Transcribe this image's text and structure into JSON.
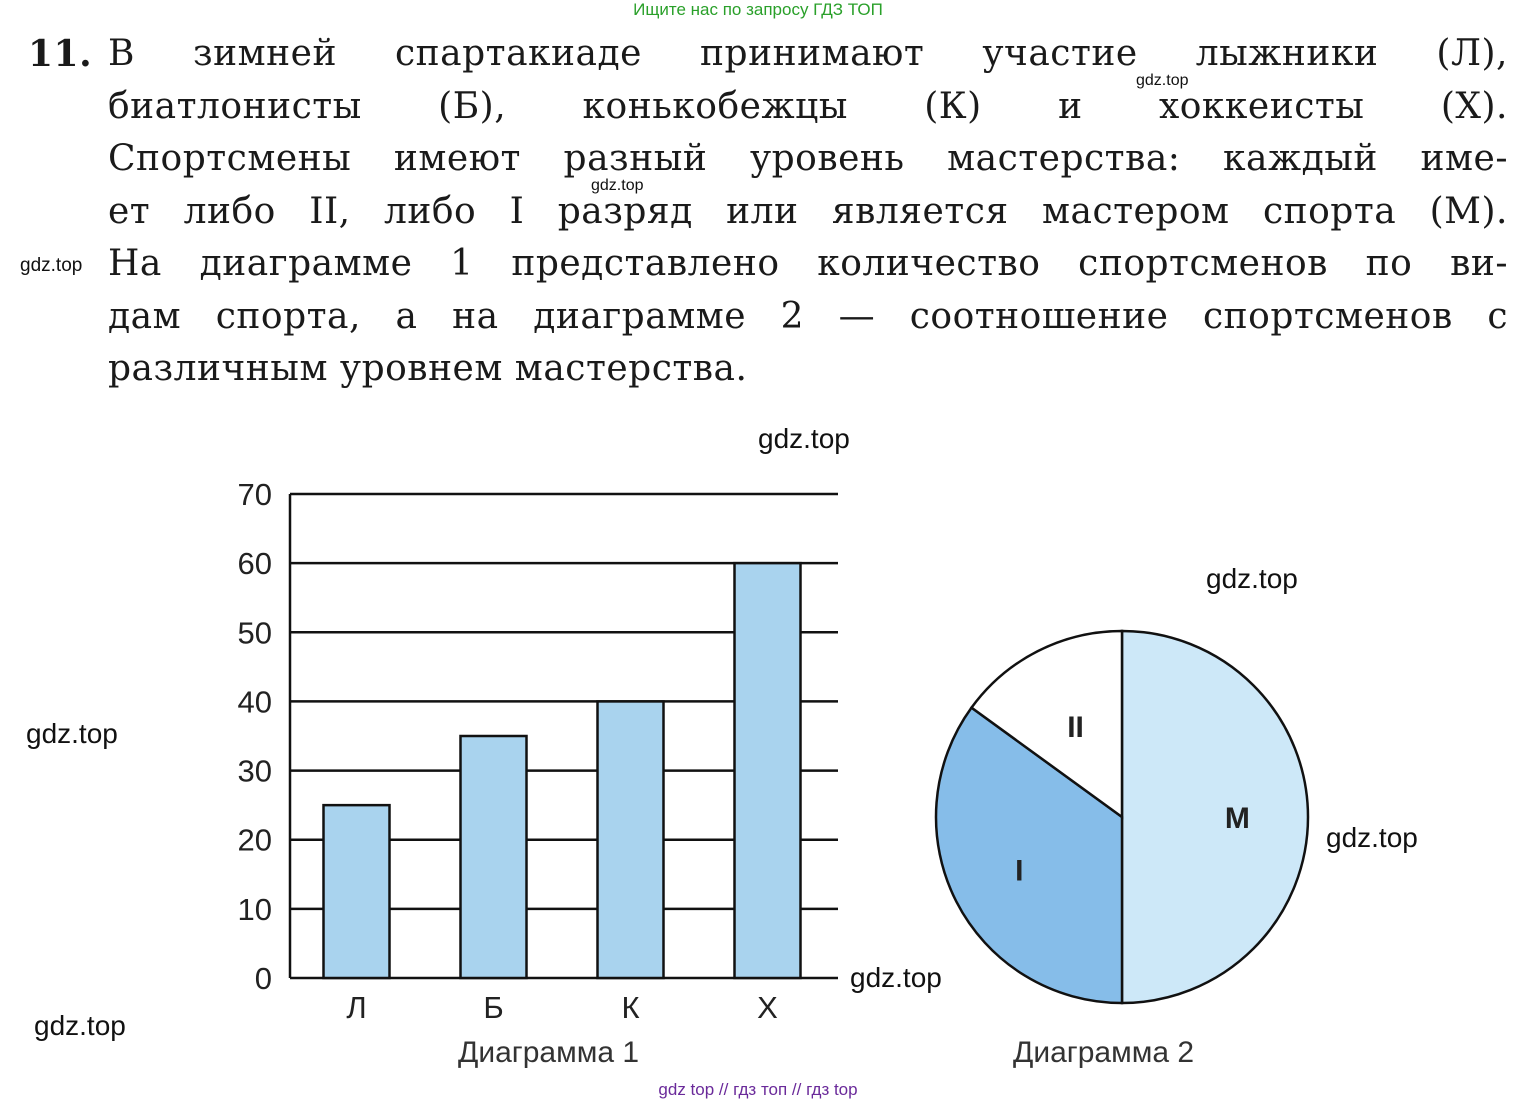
{
  "top_link": "Ищите нас по запросу ГДЗ ТОП",
  "problem": {
    "number": "11.",
    "lines": [
      "В зимней спартакиаде принимают участие лыжники (Л),",
      "биатлонисты (Б), конькобежцы (К) и хоккеисты (Х).",
      "Спортсмены имеют разный уровень мастерства: каждый име-",
      "ет либо II, либо I разряд или является мастером спорта (М).",
      "На диаграмме 1 представлено количество спортсменов по ви-",
      "дам спорта, а на диаграмме 2 — соотношение спортсменов с",
      "различным уровнем мастерства."
    ]
  },
  "watermarks": {
    "w1": "gdz.top",
    "w2": "gdz.top",
    "w3": "gdz.top",
    "w4": "gdz.top",
    "w5": "gdz.top",
    "w6": "gdz.top",
    "w7": "gdz.top",
    "w8": "gdz.top",
    "w9": "gdz.top"
  },
  "bottom_links": "gdz top  //  гдз топ  //  гдз top",
  "colors": {
    "bar_fill": "#a9d3ee",
    "pie_m": "#cde8f8",
    "pie_i": "#86bde9",
    "pie_ii": "#ffffff",
    "axis": "#111111"
  },
  "chart_data": [
    {
      "type": "bar",
      "caption": "Диаграмма 1",
      "categories": [
        "Л",
        "Б",
        "К",
        "Х"
      ],
      "values": [
        25,
        35,
        40,
        60
      ],
      "yticks": [
        "0",
        "10",
        "20",
        "30",
        "40",
        "50",
        "60",
        "70"
      ],
      "ylim": [
        0,
        70
      ],
      "grid": true
    },
    {
      "type": "pie",
      "caption": "Диаграмма 2",
      "labels": [
        "М",
        "I",
        "II"
      ],
      "values": [
        50,
        35,
        15
      ]
    }
  ]
}
